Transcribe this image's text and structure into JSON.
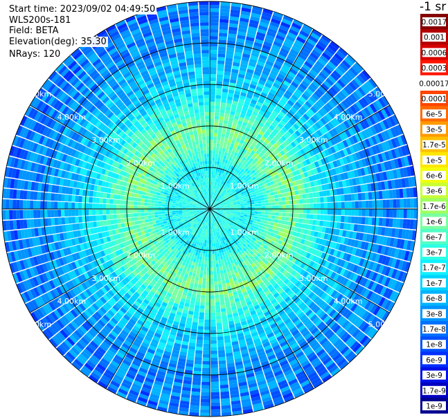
{
  "header": {
    "start_time": "Start time: 2023/09/02 04:49:50",
    "device": "WLS200s-181",
    "field": "Field: BETA",
    "elevation": "Elevation(deg): 35.30",
    "nrays": "NRays: 120"
  },
  "chart_data": {
    "type": "heatmap",
    "projection": "polar PPI",
    "field": "BETA",
    "elevation_deg": 35.3,
    "n_rays": 120,
    "range_max_km": 5.0,
    "range_rings_km": [
      1,
      2,
      3,
      4,
      5
    ],
    "range_labels": [
      "1.00km",
      "2.00km",
      "3.00km",
      "4.00km",
      "5.00km"
    ],
    "label_directions": [
      "upper-left",
      "upper-right",
      "lower-left",
      "lower-right"
    ],
    "azimuth_spokes_deg": [
      0,
      30,
      60,
      90,
      120,
      150,
      180,
      210,
      240,
      270,
      300,
      330
    ],
    "color_scale": "log",
    "colorbar_title": "-1 sr",
    "colorbar": [
      {
        "label": "0.0017",
        "color": "#850000"
      },
      {
        "label": "0.001",
        "color": "#b30000"
      },
      {
        "label": "0.0006",
        "color": "#d60000"
      },
      {
        "label": "0.0003",
        "color": "#ff1400"
      },
      {
        "label": "0.00017",
        "color": "#ffffff"
      },
      {
        "label": "0.0001",
        "color": "#ff4500"
      },
      {
        "label": "6e-5",
        "color": "#ff6a00"
      },
      {
        "label": "3e-5",
        "color": "#ff9a00"
      },
      {
        "label": "1.7e-5",
        "color": "#ffc000"
      },
      {
        "label": "1e-5",
        "color": "#ffe600"
      },
      {
        "label": "6e-6",
        "color": "#f2ff0d"
      },
      {
        "label": "3e-6",
        "color": "#c8ff37"
      },
      {
        "label": "1.7e-6",
        "color": "#9eff61"
      },
      {
        "label": "1e-6",
        "color": "#7affa2"
      },
      {
        "label": "6e-7",
        "color": "#52ffc4"
      },
      {
        "label": "3e-7",
        "color": "#2effe4"
      },
      {
        "label": "1.7e-7",
        "color": "#12f0ff"
      },
      {
        "label": "1e-7",
        "color": "#00d4ff"
      },
      {
        "label": "6e-8",
        "color": "#00b4ff"
      },
      {
        "label": "3e-8",
        "color": "#0094ff"
      },
      {
        "label": "1.7e-8",
        "color": "#0070ff"
      },
      {
        "label": "1e-8",
        "color": "#0050ff"
      },
      {
        "label": "6e-9",
        "color": "#0030ff"
      },
      {
        "label": "3e-9",
        "color": "#0010e8"
      },
      {
        "label": "1.7e-9",
        "color": "#0000c0"
      },
      {
        "label": "1e-9",
        "color": "#000090"
      }
    ],
    "radial_profile": [
      {
        "range_km": 0.0,
        "value": "1.7e-7"
      },
      {
        "range_km": 0.5,
        "value": "3e-7"
      },
      {
        "range_km": 1.0,
        "value": "1.7e-7"
      },
      {
        "range_km": 1.5,
        "value": "6e-7"
      },
      {
        "range_km": 2.0,
        "value": "1e-6"
      },
      {
        "range_km": 2.5,
        "value": "3e-7"
      },
      {
        "range_km": 3.0,
        "value": "1e-7"
      },
      {
        "range_km": 3.5,
        "value": "6e-8"
      },
      {
        "range_km": 4.0,
        "value": "3e-8"
      },
      {
        "range_km": 5.0,
        "value": "1.7e-8"
      }
    ]
  }
}
